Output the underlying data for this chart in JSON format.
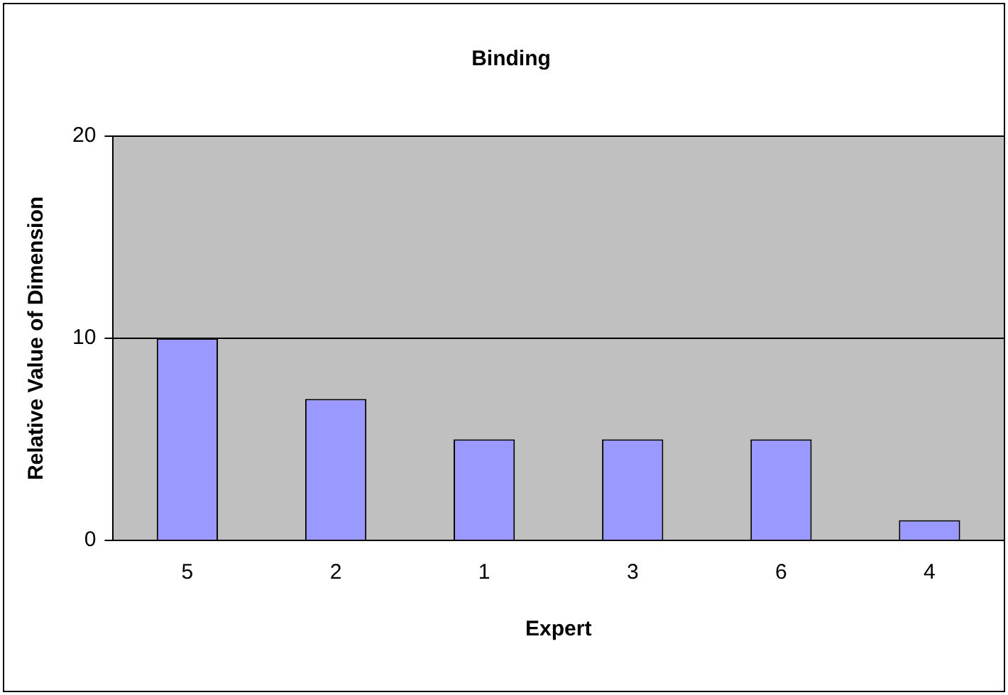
{
  "chart_data": {
    "type": "bar",
    "title": "Binding",
    "xlabel": "Expert",
    "ylabel": "Relative Value of Dimension",
    "categories": [
      "5",
      "2",
      "1",
      "3",
      "6",
      "4"
    ],
    "values": [
      10,
      7,
      5,
      5,
      5,
      1
    ],
    "color": "#9999ff",
    "ylim": [
      0,
      20
    ],
    "yticks": [
      0,
      10,
      20
    ],
    "grid": "y",
    "legend": false
  }
}
